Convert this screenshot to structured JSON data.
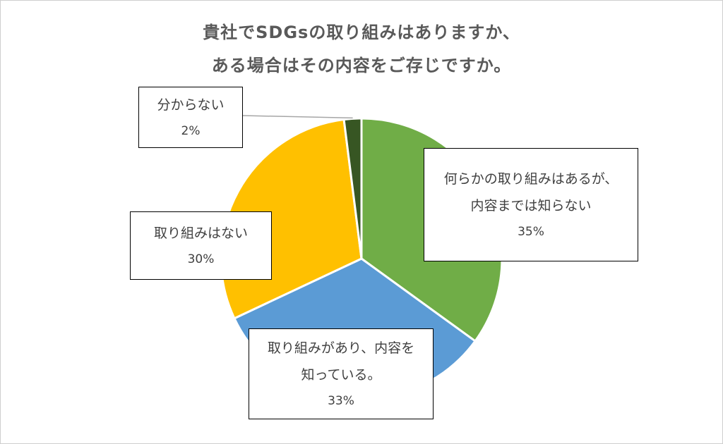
{
  "chart_data": {
    "type": "pie",
    "title": [
      "貴社でSDGsの取り組みはありますか、",
      "ある場合はその内容をご存じですか。"
    ],
    "slices": [
      {
        "label_lines": [
          "何らかの取り組みはあるが、",
          "内容までは知らない"
        ],
        "value": 35,
        "value_label": "35%",
        "color": "#70ad47"
      },
      {
        "label_lines": [
          "取り組みがあり、内容を",
          "知っている。"
        ],
        "value": 33,
        "value_label": "33%",
        "color": "#5b9bd5"
      },
      {
        "label_lines": [
          "取り組みはない"
        ],
        "value": 30,
        "value_label": "30%",
        "color": "#ffc000"
      },
      {
        "label_lines": [
          "分からない"
        ],
        "value": 2,
        "value_label": "2%",
        "color": "#375623"
      }
    ],
    "start_angle": "12 o'clock",
    "direction": "clockwise"
  }
}
